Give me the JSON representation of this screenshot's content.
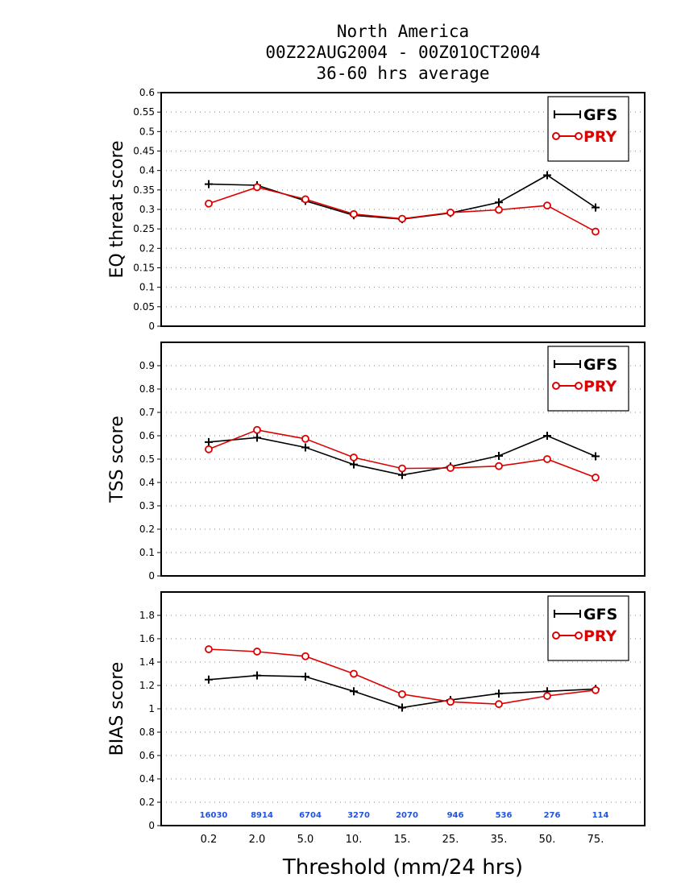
{
  "title": {
    "line1": "North America",
    "line2": "00Z22AUG2004 - 00Z01OCT2004",
    "line3": "36-60 hrs average"
  },
  "colors": {
    "gfs": "#000000",
    "pry": "#dd0000",
    "counts": "#2255dd",
    "grid": "#888888"
  },
  "chart_data": [
    {
      "type": "line",
      "ylabel": "EQ threat score",
      "xlabel": "",
      "categories": [
        "0.2",
        "2.0",
        "5.0",
        "10.",
        "15.",
        "25.",
        "35.",
        "50.",
        "75."
      ],
      "ylim": [
        0,
        0.6
      ],
      "yticks": [
        0,
        0.05,
        0.1,
        0.15,
        0.2,
        0.25,
        0.3,
        0.35,
        0.4,
        0.45,
        0.5,
        0.55,
        0.6
      ],
      "yticklabels": [
        "0",
        "0.05",
        "0.1",
        "0.15",
        "0.2",
        "0.25",
        "0.3",
        "0.35",
        "0.4",
        "0.45",
        "0.5",
        "0.55",
        "0.6"
      ],
      "grid": true,
      "legend": "top-right",
      "series": [
        {
          "name": "GFS",
          "marker": "plus",
          "values": [
            0.365,
            0.362,
            0.322,
            0.285,
            0.275,
            0.291,
            0.318,
            0.388,
            0.305
          ]
        },
        {
          "name": "PRY",
          "marker": "circle",
          "values": [
            0.315,
            0.357,
            0.326,
            0.288,
            0.276,
            0.292,
            0.299,
            0.31,
            0.243
          ]
        }
      ]
    },
    {
      "type": "line",
      "ylabel": "TSS score",
      "xlabel": "",
      "categories": [
        "0.2",
        "2.0",
        "5.0",
        "10.",
        "15.",
        "25.",
        "35.",
        "50.",
        "75."
      ],
      "ylim": [
        0,
        1.0
      ],
      "yticks": [
        0,
        0.1,
        0.2,
        0.3,
        0.4,
        0.5,
        0.6,
        0.7,
        0.8,
        0.9
      ],
      "yticklabels": [
        "0",
        "0.1",
        "0.2",
        "0.3",
        "0.4",
        "0.5",
        "0.6",
        "0.7",
        "0.8",
        "0.9"
      ],
      "grid": true,
      "legend": "top-right",
      "series": [
        {
          "name": "GFS",
          "marker": "plus",
          "values": [
            0.573,
            0.592,
            0.55,
            0.477,
            0.432,
            0.468,
            0.514,
            0.6,
            0.512
          ]
        },
        {
          "name": "PRY",
          "marker": "circle",
          "values": [
            0.542,
            0.625,
            0.587,
            0.507,
            0.46,
            0.462,
            0.47,
            0.5,
            0.421
          ]
        }
      ]
    },
    {
      "type": "line",
      "ylabel": "BIAS score",
      "xlabel": "Threshold (mm/24 hrs)",
      "categories": [
        "0.2",
        "2.0",
        "5.0",
        "10.",
        "15.",
        "25.",
        "35.",
        "50.",
        "75."
      ],
      "ylim": [
        0,
        2.0
      ],
      "yticks": [
        0,
        0.2,
        0.4,
        0.6,
        0.8,
        1.0,
        1.2,
        1.4,
        1.6,
        1.8
      ],
      "yticklabels": [
        "0",
        "0.2",
        "0.4",
        "0.6",
        "0.8",
        "1",
        "1.2",
        "1.4",
        "1.6",
        "1.8"
      ],
      "grid": true,
      "legend": "top-right",
      "counts": [
        "16030",
        "8914",
        "6704",
        "3270",
        "2070",
        "946",
        "536",
        "276",
        "114"
      ],
      "series": [
        {
          "name": "GFS",
          "marker": "plus",
          "values": [
            1.25,
            1.285,
            1.275,
            1.15,
            1.01,
            1.075,
            1.13,
            1.15,
            1.17
          ]
        },
        {
          "name": "PRY",
          "marker": "circle",
          "values": [
            1.51,
            1.49,
            1.45,
            1.3,
            1.125,
            1.06,
            1.04,
            1.11,
            1.16
          ]
        }
      ]
    }
  ]
}
